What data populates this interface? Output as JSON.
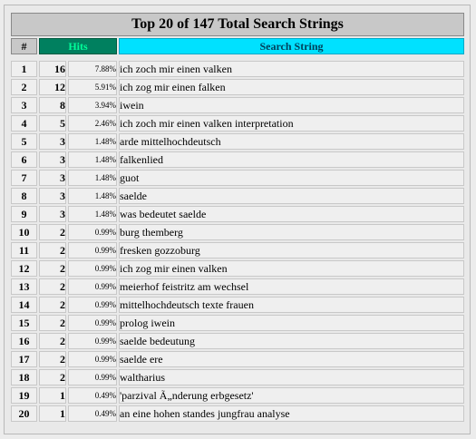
{
  "title": "Top 20 of 147 Total Search Strings",
  "headers": {
    "rank": "#",
    "hits": "Hits",
    "string": "Search String"
  },
  "rows": [
    {
      "rank": "1",
      "hits": "16",
      "pct": "7.88%",
      "text": "ich zoch mir einen valken"
    },
    {
      "rank": "2",
      "hits": "12",
      "pct": "5.91%",
      "text": "ich zog mir einen falken"
    },
    {
      "rank": "3",
      "hits": "8",
      "pct": "3.94%",
      "text": "iwein"
    },
    {
      "rank": "4",
      "hits": "5",
      "pct": "2.46%",
      "text": "ich zoch mir einen valken interpretation"
    },
    {
      "rank": "5",
      "hits": "3",
      "pct": "1.48%",
      "text": "arde mittelhochdeutsch"
    },
    {
      "rank": "6",
      "hits": "3",
      "pct": "1.48%",
      "text": "falkenlied"
    },
    {
      "rank": "7",
      "hits": "3",
      "pct": "1.48%",
      "text": "guot"
    },
    {
      "rank": "8",
      "hits": "3",
      "pct": "1.48%",
      "text": "saelde"
    },
    {
      "rank": "9",
      "hits": "3",
      "pct": "1.48%",
      "text": "was bedeutet saelde"
    },
    {
      "rank": "10",
      "hits": "2",
      "pct": "0.99%",
      "text": "burg themberg"
    },
    {
      "rank": "11",
      "hits": "2",
      "pct": "0.99%",
      "text": "fresken gozzoburg"
    },
    {
      "rank": "12",
      "hits": "2",
      "pct": "0.99%",
      "text": "ich zog mir einen valken"
    },
    {
      "rank": "13",
      "hits": "2",
      "pct": "0.99%",
      "text": "meierhof feistritz am wechsel"
    },
    {
      "rank": "14",
      "hits": "2",
      "pct": "0.99%",
      "text": "mittelhochdeutsch texte frauen"
    },
    {
      "rank": "15",
      "hits": "2",
      "pct": "0.99%",
      "text": "prolog iwein"
    },
    {
      "rank": "16",
      "hits": "2",
      "pct": "0.99%",
      "text": "saelde bedeutung"
    },
    {
      "rank": "17",
      "hits": "2",
      "pct": "0.99%",
      "text": "saelde ere"
    },
    {
      "rank": "18",
      "hits": "2",
      "pct": "0.99%",
      "text": "waltharius"
    },
    {
      "rank": "19",
      "hits": "1",
      "pct": "0.49%",
      "text": "'parzival Ã„nderung erbgesetz'"
    },
    {
      "rank": "20",
      "hits": "1",
      "pct": "0.49%",
      "text": "an eine hohen standes jungfrau analyse"
    }
  ],
  "colors": {
    "title_bg": "#c8c8c8",
    "hits_header_bg": "#00805f",
    "hits_header_text": "#00ff9a",
    "string_header_bg": "#00e1ff",
    "row_bg": "#efefef"
  }
}
